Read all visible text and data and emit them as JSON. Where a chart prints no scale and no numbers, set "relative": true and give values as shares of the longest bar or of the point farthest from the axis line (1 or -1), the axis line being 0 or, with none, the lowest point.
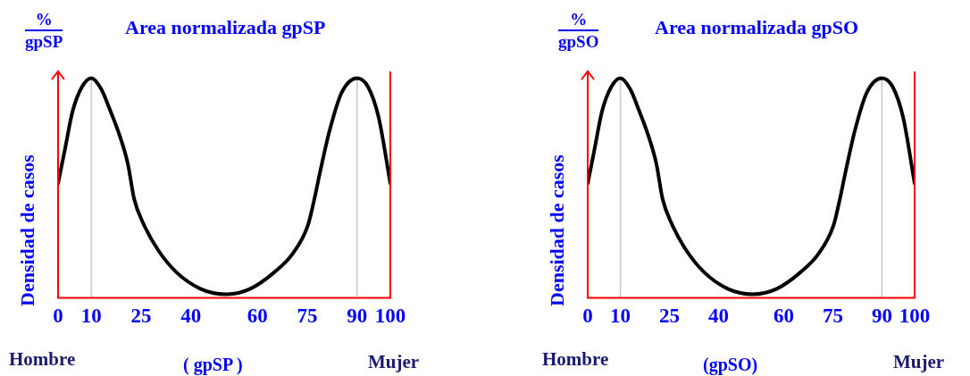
{
  "chart_data": [
    {
      "type": "line",
      "title": "Area normalizada gpSP",
      "xlabel": "( gpSP )",
      "ylabel": "Densidad de casos",
      "relative": true,
      "annotations": [
        "%",
        "gpSP",
        "Hombre",
        "Mujer"
      ],
      "x": [
        0,
        2,
        4.4,
        7.2,
        10,
        13,
        15.5,
        18.5,
        21,
        22.9,
        25.6,
        30.2,
        35.7,
        43,
        50.4,
        57.7,
        65,
        70.6,
        75.2,
        77,
        78.9,
        81.7,
        85.4,
        90,
        93.3,
        96.5,
        100
      ],
      "series": [
        {
          "color": "#000000",
          "values": [
            0.52,
            0.67,
            0.85,
            0.96,
            1.0,
            0.95,
            0.86,
            0.74,
            0.61,
            0.45,
            0.34,
            0.215,
            0.115,
            0.04,
            0.016,
            0.04,
            0.115,
            0.2,
            0.33,
            0.44,
            0.575,
            0.76,
            0.935,
            1.0,
            0.96,
            0.82,
            0.52
          ]
        }
      ],
      "xlim": [
        0,
        100
      ],
      "xticks": [
        0,
        10,
        25,
        40,
        60,
        75,
        90,
        100
      ],
      "tick_labels": "x",
      "grid": false,
      "legend": false,
      "marker": "none",
      "line_style": "solid",
      "ref_lines": [
        {
          "axis": "x",
          "value": 10,
          "color": "#c8c8c8"
        },
        {
          "axis": "x",
          "value": 90,
          "color": "#c8c8c8"
        }
      ]
    },
    {
      "type": "line",
      "title": "Area normalizada gpSO",
      "xlabel": "(gpSO)",
      "ylabel": "Densidad de casos",
      "relative": true,
      "annotations": [
        "%",
        "gpSO",
        "Hombre",
        "Mujer"
      ],
      "x": [
        0,
        2,
        4.4,
        7.2,
        10,
        13,
        15.5,
        18.5,
        21,
        22.9,
        25.6,
        30.2,
        35.7,
        43,
        50.4,
        57.7,
        65,
        70.6,
        75.2,
        77,
        78.9,
        81.7,
        85.4,
        90,
        93.3,
        96.5,
        100
      ],
      "series": [
        {
          "color": "#000000",
          "values": [
            0.52,
            0.67,
            0.85,
            0.96,
            1.0,
            0.95,
            0.86,
            0.74,
            0.61,
            0.45,
            0.34,
            0.215,
            0.115,
            0.04,
            0.016,
            0.04,
            0.115,
            0.2,
            0.33,
            0.44,
            0.575,
            0.76,
            0.935,
            1.0,
            0.96,
            0.82,
            0.52
          ]
        }
      ],
      "xlim": [
        0,
        100
      ],
      "xticks": [
        0,
        10,
        25,
        40,
        60,
        75,
        90,
        100
      ],
      "tick_labels": "x",
      "grid": false,
      "legend": false,
      "marker": "none",
      "line_style": "solid",
      "ref_lines": [
        {
          "axis": "x",
          "value": 10,
          "color": "#c8c8c8"
        },
        {
          "axis": "x",
          "value": 90,
          "color": "#c8c8c8"
        }
      ]
    }
  ]
}
